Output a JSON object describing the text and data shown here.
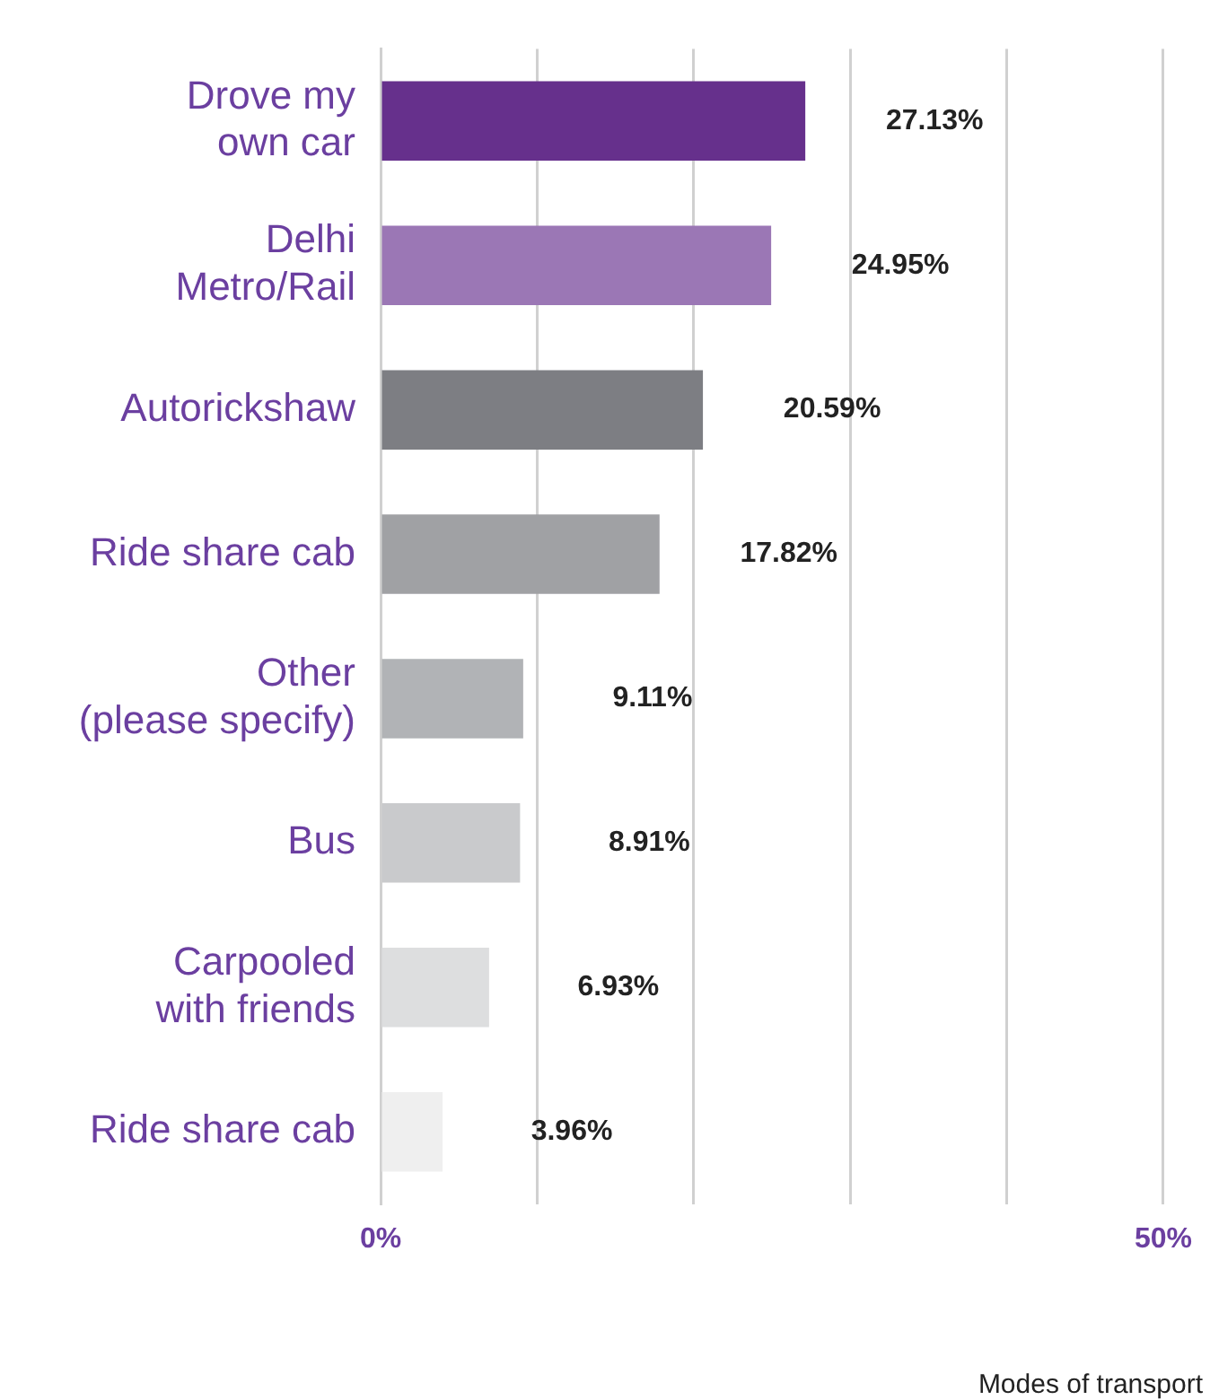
{
  "chart_data": {
    "type": "bar",
    "orientation": "horizontal",
    "categories": [
      "Drove my\nown car",
      "Delhi\nMetro/Rail",
      "Autorickshaw",
      "Ride share cab",
      "Other\n(please specify)",
      "Bus",
      "Carpooled\nwith friends",
      "Ride share cab"
    ],
    "values": [
      27.13,
      24.95,
      20.59,
      17.82,
      9.11,
      8.91,
      6.93,
      3.96
    ],
    "colors": [
      "#66308c",
      "#9b77b5",
      "#7d7e83",
      "#a0a1a4",
      "#b1b3b6",
      "#c9cacc",
      "#dddedf",
      "#efefef"
    ],
    "value_labels": [
      "27.13%",
      "24.95%",
      "20.59%",
      "17.82%",
      "9.11%",
      "8.91%",
      "6.93%",
      "3.96%"
    ],
    "xlim": [
      0,
      50
    ],
    "xticks": [
      {
        "value": 0,
        "label": "0%"
      },
      {
        "value": 10,
        "label": null
      },
      {
        "value": 20,
        "label": null
      },
      {
        "value": 30,
        "label": null
      },
      {
        "value": 40,
        "label": null
      },
      {
        "value": 50,
        "label": "50%"
      }
    ],
    "grid": "x",
    "annotations": [
      "Modes of transport"
    ]
  }
}
